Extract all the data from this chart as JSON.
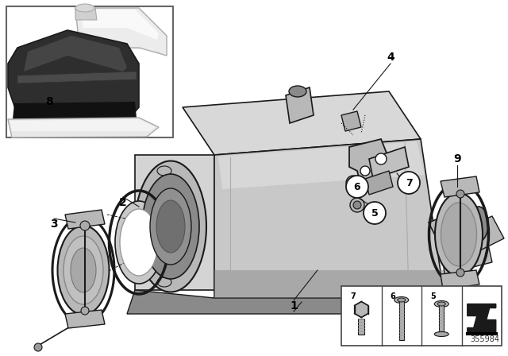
{
  "bg_color": "#ffffff",
  "diagram_num": "355984",
  "lc": "#1a1a1a",
  "gray_light": "#d4d4d4",
  "gray_mid": "#b8b8b8",
  "gray_dark": "#8a8a8a",
  "gray_darker": "#6a6a6a",
  "dark_sleeve": "#3a3a3a",
  "white_pipe": "#e8e8e8",
  "bracket_color": "#c0c0c0",
  "clamp_color": "#b0b0b0"
}
